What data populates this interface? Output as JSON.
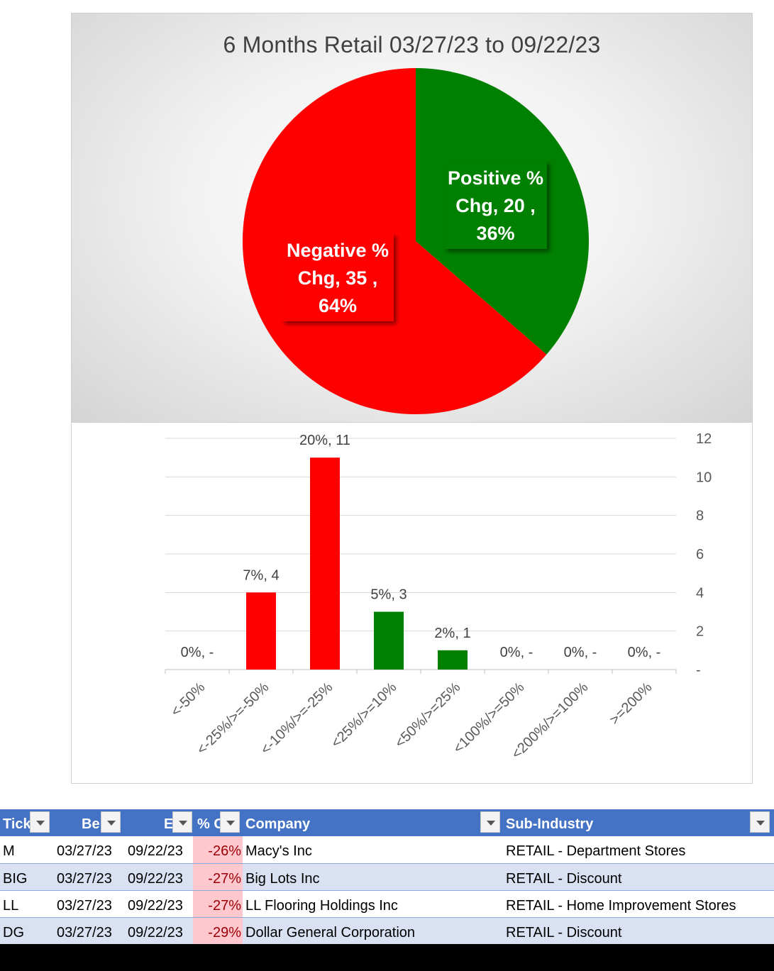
{
  "chart_data": [
    {
      "type": "pie",
      "title": "6 Months Retail 03/27/23 to 09/22/23",
      "slices": [
        {
          "label": "Positive % Chg",
          "value": 20,
          "percent": "36%",
          "color": "#008000",
          "line1": "Positive %",
          "line2": "Chg,  20 ,",
          "line3": "36%"
        },
        {
          "label": "Negative % Chg",
          "value": 35,
          "percent": "64%",
          "color": "#ff0000",
          "line1": "Negative %",
          "line2": "Chg,  35 ,",
          "line3": "64%"
        }
      ]
    },
    {
      "type": "bar",
      "categories": [
        "<-50%",
        "<-25%/>=-50%",
        "<-10%/>=-25%",
        "<25%/>=10%",
        "<50%/>=25%",
        "<100%/>=50%",
        "<200%/>=100%",
        ">=200%"
      ],
      "values": [
        0,
        4,
        11,
        3,
        1,
        0,
        0,
        0
      ],
      "data_labels": [
        "0%,  -",
        "7%,  4",
        "20%,  11",
        "5%,  3",
        "2%,  1",
        "0%,  -",
        "0%,  -",
        "0%,  -"
      ],
      "colors": [
        "#ff0000",
        "#ff0000",
        "#ff0000",
        "#008000",
        "#008000",
        "#008000",
        "#008000",
        "#008000"
      ],
      "ylim": [
        0,
        12
      ],
      "yticks": [
        "-",
        "2",
        "4",
        "6",
        "8",
        "10",
        "12"
      ],
      "grid": true,
      "y_axis_side": "right"
    }
  ],
  "table": {
    "headers": [
      "Tick",
      "Be",
      "E",
      "% C",
      "Company",
      "Sub-Industry"
    ],
    "rows": [
      {
        "ticker": "M",
        "begin": "03/27/23",
        "end": "09/22/23",
        "pct": "-26%",
        "company": "Macy's Inc",
        "sub": "RETAIL - Department Stores"
      },
      {
        "ticker": "BIG",
        "begin": "03/27/23",
        "end": "09/22/23",
        "pct": "-27%",
        "company": "Big Lots Inc",
        "sub": "RETAIL - Discount"
      },
      {
        "ticker": "LL",
        "begin": "03/27/23",
        "end": "09/22/23",
        "pct": "-27%",
        "company": "LL Flooring Holdings Inc",
        "sub": "RETAIL - Home Improvement Stores"
      },
      {
        "ticker": "DG",
        "begin": "03/27/23",
        "end": "09/22/23",
        "pct": "-29%",
        "company": "Dollar General Corporation",
        "sub": "RETAIL - Discount"
      }
    ]
  }
}
